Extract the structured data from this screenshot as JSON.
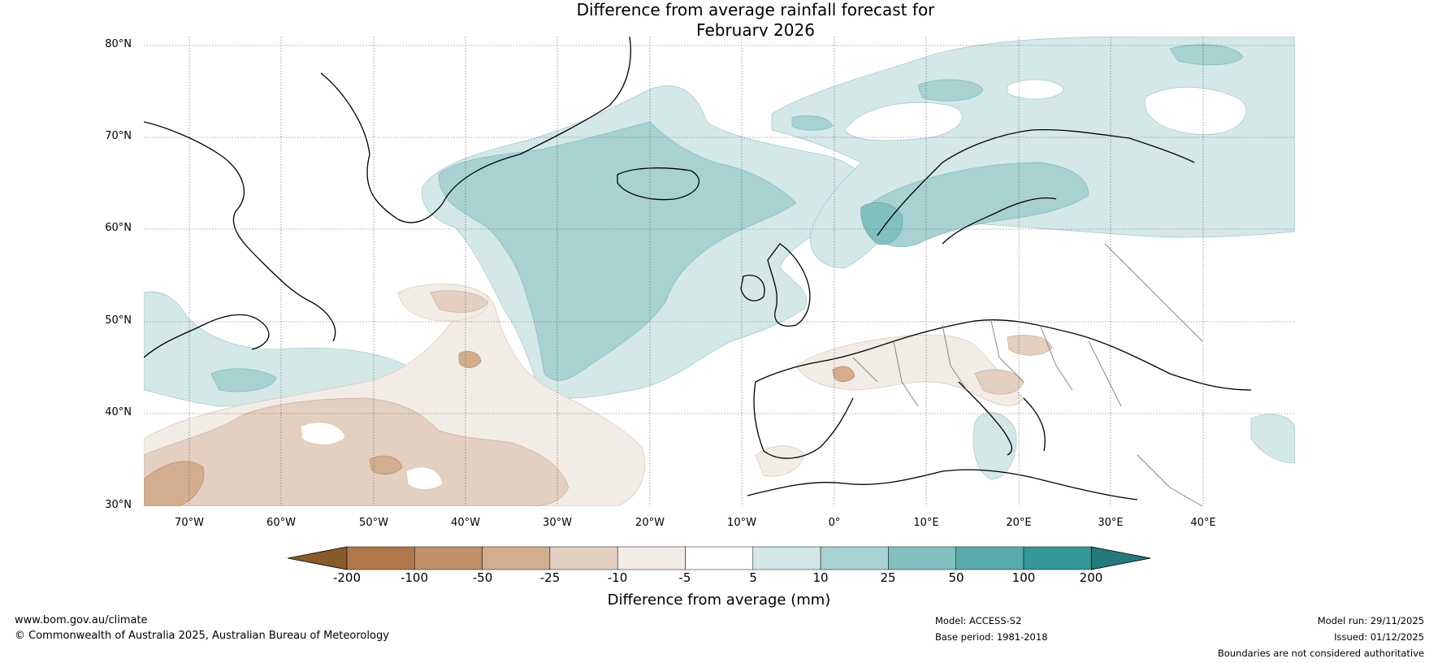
{
  "title_line1": "Difference from average rainfall forecast for",
  "title_line2": "February 2026",
  "latitudes": [
    "80°N",
    "70°N",
    "60°N",
    "50°N",
    "40°N",
    "30°N"
  ],
  "longitudes": [
    "70°W",
    "60°W",
    "50°W",
    "40°W",
    "30°W",
    "20°W",
    "10°W",
    "0°",
    "10°E",
    "20°E",
    "30°E",
    "40°E"
  ],
  "legend": {
    "ticks": [
      "-200",
      "-100",
      "-50",
      "-25",
      "-10",
      "-5",
      "5",
      "10",
      "25",
      "50",
      "100",
      "200"
    ],
    "colors": [
      "#8a5a2b",
      "#b07848",
      "#c09068",
      "#d2ae8e",
      "#e4d0c0",
      "#f2ece6",
      "#ffffff",
      "#d4e8e8",
      "#a8d2d2",
      "#82c0c0",
      "#5aabab",
      "#349898",
      "#247a7a"
    ],
    "title": "Difference from average (mm)"
  },
  "footer": {
    "website": "www.bom.gov.au/climate",
    "copyright": "© Commonwealth of Australia 2025, Australian Bureau of Meteorology",
    "model": "Model: ACCESS-S2",
    "base_period": "Base period: 1981-2018",
    "model_run": "Model run: 29/11/2025",
    "issued": "Issued: 01/12/2025",
    "disclaimer": "Boundaries are not considered authoritative"
  }
}
